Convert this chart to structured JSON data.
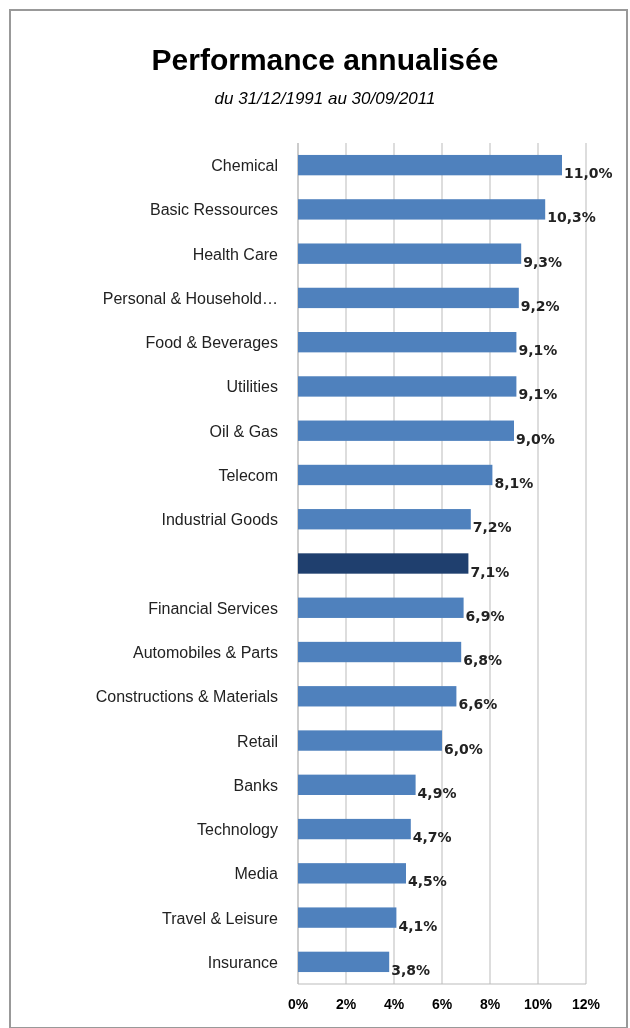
{
  "chart_data": {
    "type": "bar",
    "orientation": "horizontal",
    "title": "Performance annualisée",
    "subtitle": "du 31/12/1991 au 30/09/2011",
    "categories": [
      "Chemical",
      "Basic Ressources",
      "Health Care",
      "Personal & Household…",
      "Food & Beverages",
      "Utilities",
      "Oil & Gas",
      "Telecom",
      "Industrial Goods",
      null,
      "Financial Services",
      "Automobiles & Parts",
      "Constructions & Materials",
      "Retail",
      "Banks",
      "Technology",
      "Media",
      "Travel & Leisure",
      "Insurance"
    ],
    "values": [
      11.0,
      10.3,
      9.3,
      9.2,
      9.1,
      9.1,
      9.0,
      8.1,
      7.2,
      7.1,
      6.9,
      6.8,
      6.6,
      6.0,
      4.9,
      4.7,
      4.5,
      4.1,
      3.8
    ],
    "value_labels": [
      "11,0%",
      "10,3%",
      "9,3%",
      "9,2%",
      "9,1%",
      "9,1%",
      "9,0%",
      "8,1%",
      "7,2%",
      "7,1%",
      "6,9%",
      "6,8%",
      "6,6%",
      "6,0%",
      "4,9%",
      "4,7%",
      "4,5%",
      "4,1%",
      "3,8%"
    ],
    "colors": [
      "#4f81bd",
      "#4f81bd",
      "#4f81bd",
      "#4f81bd",
      "#4f81bd",
      "#4f81bd",
      "#4f81bd",
      "#4f81bd",
      "#4f81bd",
      "#1f3f6e",
      "#4f81bd",
      "#4f81bd",
      "#4f81bd",
      "#4f81bd",
      "#4f81bd",
      "#4f81bd",
      "#4f81bd",
      "#4f81bd",
      "#4f81bd"
    ],
    "xlim": [
      0,
      12
    ],
    "xticks": [
      {
        "value": 0,
        "label": "0%"
      },
      {
        "value": 2,
        "label": "2%"
      },
      {
        "value": 4,
        "label": "4%"
      },
      {
        "value": 6,
        "label": "6%"
      },
      {
        "value": 8,
        "label": "8%"
      },
      {
        "value": 10,
        "label": "10%"
      },
      {
        "value": 12,
        "label": "12%"
      }
    ],
    "grid": "x"
  }
}
